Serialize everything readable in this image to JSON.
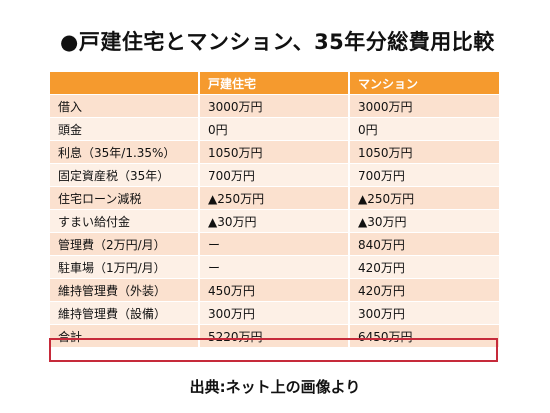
{
  "title": "●戸建住宅とマンション、35年分総費用比較",
  "table": {
    "headers": [
      "",
      "戸建住宅",
      "マンション"
    ],
    "rows": [
      [
        "借入",
        "3000万円",
        "3000万円"
      ],
      [
        "頭金",
        "0円",
        "0円"
      ],
      [
        "利息（35年/1.35%）",
        "1050万円",
        "1050万円"
      ],
      [
        "固定資産税（35年）",
        "700万円",
        "700万円"
      ],
      [
        "住宅ローン減税",
        "▲250万円",
        "▲250万円"
      ],
      [
        "すまい給付金",
        "▲30万円",
        "▲30万円"
      ],
      [
        "管理費（2万円/月）",
        "ー",
        "840万円"
      ],
      [
        "駐車場（1万円/月）",
        "ー",
        "420万円"
      ],
      [
        "維持管理費（外装）",
        "450万円",
        "420万円"
      ],
      [
        "維持管理費（設備）",
        "300万円",
        "300万円"
      ],
      [
        "合計",
        "5220万円",
        "6450万円"
      ]
    ]
  },
  "source": "出典:ネット上の画像より",
  "colors": {
    "header_bg": "#f59a2e",
    "row_odd": "#fbe1cf",
    "row_even": "#fdf0e6",
    "total_outline": "#c62a3a"
  }
}
